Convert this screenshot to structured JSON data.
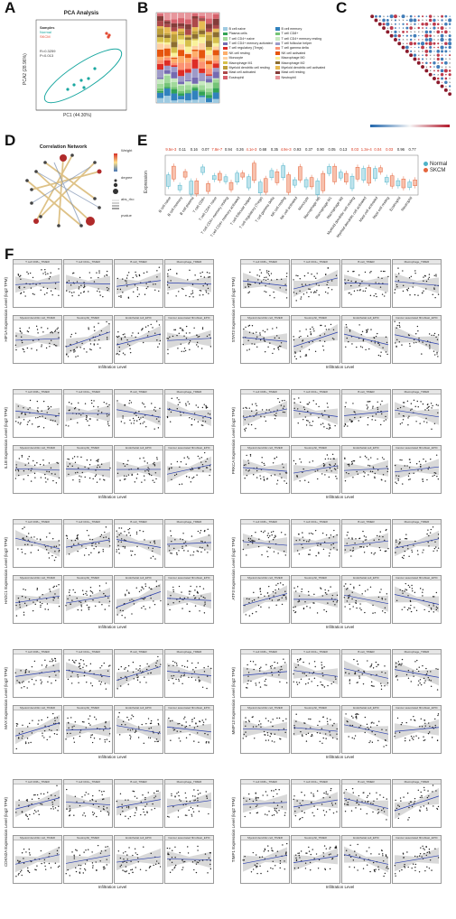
{
  "panels": {
    "A": "A",
    "B": "B",
    "C": "C",
    "D": "D",
    "E": "E",
    "F": "F"
  },
  "pca": {
    "title": "PCA Analysis",
    "xlabel": "PC1 (44.30%)",
    "ylabel": "PCA2 (28.96%)",
    "legend_title": "Samples",
    "groups": [
      "Normal",
      "SKCM"
    ],
    "stats": [
      "R=0.3259",
      "P=0.013"
    ],
    "colors": {
      "Normal": "#19a7a0",
      "SKCM": "#e34a33"
    }
  },
  "barplot": {
    "legend": [
      "B cell naive",
      "B cell memory",
      "Plasma cells",
      "T cell CD8+",
      "T cell CD4+ naive",
      "T cell CD4+ memory resting",
      "T cell CD4+ memory activated",
      "T cell follicular helper",
      "T cell regulatory (Tregs)",
      "T cell gamma delta",
      "NK cell resting",
      "NK cell activated",
      "Monocyte",
      "Macrophage M0",
      "Macrophage M1",
      "Macrophage M2",
      "Myeloid dendritic cell resting",
      "Myeloid dendritic cell activated",
      "Mast cell activated",
      "Mast cell resting",
      "Eosinophil",
      "Neutrophil"
    ],
    "colors": [
      "#9ecae1",
      "#3182bd",
      "#31a354",
      "#74c476",
      "#a1d99b",
      "#c7e9c0",
      "#756bb1",
      "#9e9ac8",
      "#de2d26",
      "#fc9272",
      "#fdae6b",
      "#e6550d",
      "#fdd0a2",
      "#f9f29b",
      "#d6c04a",
      "#8c6d31",
      "#bd9e39",
      "#e7ba52",
      "#ad494a",
      "#843c39",
      "#d6616b",
      "#e7969c"
    ]
  },
  "network": {
    "title": "Correlation Network",
    "legend_items": [
      "Weight",
      "degree",
      "abs_rho",
      "pvalue"
    ]
  },
  "boxplot": {
    "ylabel": "Expression",
    "legend": [
      "Normal",
      "SKCM"
    ],
    "colors": {
      "Normal": "#4fb3c8",
      "SKCM": "#e4653d"
    },
    "pvalues": [
      "9.5e-3",
      "0.11",
      "0.16",
      "0.07",
      "7.8e-7",
      "0.94",
      "0.26",
      "4.1e-3",
      "0.68",
      "0.35",
      "4.9e-3",
      "0.93",
      "0.37",
      "0.90",
      "0.05",
      "0.13",
      "0.03",
      "1.3e-4",
      "0.04",
      "0.03",
      "0.96",
      "0.77"
    ],
    "categories": [
      "B cell naive",
      "B cell memory",
      "B cell plasma",
      "T cell CD8+",
      "T cell CD4+ naive",
      "T cell CD4+ memory resting",
      "T cell CD4+ memory activated",
      "T cell follicular helper",
      "T cell regulatory (Tregs)",
      "T cell gamma delta",
      "NK cell resting",
      "NK cell activated",
      "Monocyte",
      "Macrophage M0",
      "Macrophage M1",
      "Macrophage M2",
      "Myeloid dendritic cell resting",
      "Myeloid dendritic cell activated",
      "Mast cell activated",
      "Mast cell resting",
      "Eosinophil",
      "Neutrophil"
    ]
  },
  "scatter": {
    "xlabel": "Infiltration Level",
    "row1_titles": [
      "T cell CD8+_TIMER",
      "T cell CD4+_TIMER",
      "B cell_TIMER",
      "Macrophage_TIMER"
    ],
    "row2_titles": [
      "Myeloid dendritic cell_TIMER",
      "Neutrophil_TIMER",
      "Endothelial cell_EPIC",
      "Cancer associated fibroblast_EPIC"
    ],
    "genes_left": [
      "HIF1A",
      "IL1B",
      "HADC1",
      "MAX",
      "CDKN2A"
    ],
    "genes_right": [
      "STAT3",
      "PRKCA",
      "ATF3",
      "MMP13",
      "TIMP1"
    ],
    "ylabel_suffix": " Expression Level (log2 TPM)"
  }
}
